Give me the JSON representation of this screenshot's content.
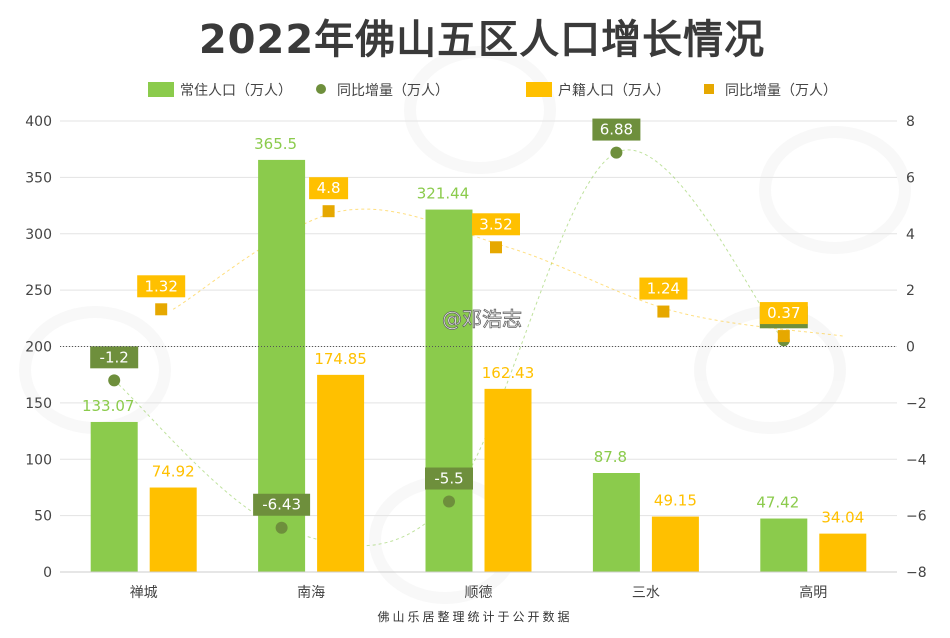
{
  "title": "2022年佛山五区人口增长情况",
  "source": "佛山乐居整理统计于公开数据",
  "watermark_handle": "@邓浩志",
  "colors": {
    "resident_bar": "#8bcb4c",
    "resident_label": "#8bcb4c",
    "resident_marker": "#6e8f3c",
    "resident_tag": "#6e8f3c",
    "hukou_bar": "#ffc000",
    "hukou_label": "#ffc000",
    "hukou_marker": "#e6a800",
    "hukou_tag": "#ffc000",
    "axis_text": "#444444",
    "grid": "#e3e3e3",
    "title": "#3a3a3a"
  },
  "chart_data": {
    "type": "bar",
    "categories": [
      "禅城",
      "南海",
      "顺德",
      "三水",
      "高明"
    ],
    "series": [
      {
        "name": "常住人口（万人）",
        "kind": "bar",
        "axis": "left",
        "values": [
          133.07,
          365.5,
          321.44,
          87.8,
          47.42
        ]
      },
      {
        "name": "同比增量（万人）",
        "kind": "marker",
        "marker": "circle",
        "axis": "right",
        "values": [
          -1.2,
          -6.43,
          -5.5,
          6.88,
          0.22
        ]
      },
      {
        "name": "户籍人口（万人）",
        "kind": "bar",
        "axis": "left",
        "values": [
          74.92,
          174.85,
          162.43,
          49.15,
          34.04
        ]
      },
      {
        "name": "同比增量（万人）",
        "kind": "marker",
        "marker": "square",
        "axis": "right",
        "values": [
          1.32,
          4.8,
          3.52,
          1.24,
          0.37
        ]
      }
    ],
    "value_labels": {
      "resident": [
        "133.07",
        "365.5",
        "321.44",
        "87.8",
        "47.42"
      ],
      "resident_change": [
        "-1.2",
        "-6.43",
        "-5.5",
        "6.88",
        "0.22"
      ],
      "hukou": [
        "74.92",
        "174.85",
        "162.43",
        "49.15",
        "34.04"
      ],
      "hukou_change": [
        "1.32",
        "4.8",
        "3.52",
        "1.24",
        "0.37"
      ]
    },
    "y_left": {
      "min": 0,
      "max": 400,
      "ticks": [
        "0",
        "50",
        "100",
        "150",
        "200",
        "250",
        "300",
        "350",
        "400"
      ]
    },
    "y_right": {
      "min": -8,
      "max": 8,
      "ticks": [
        "−8",
        "−6",
        "−4",
        "−2",
        "0",
        "2",
        "4",
        "6",
        "8"
      ]
    },
    "grid": true,
    "legend_position": "top"
  }
}
